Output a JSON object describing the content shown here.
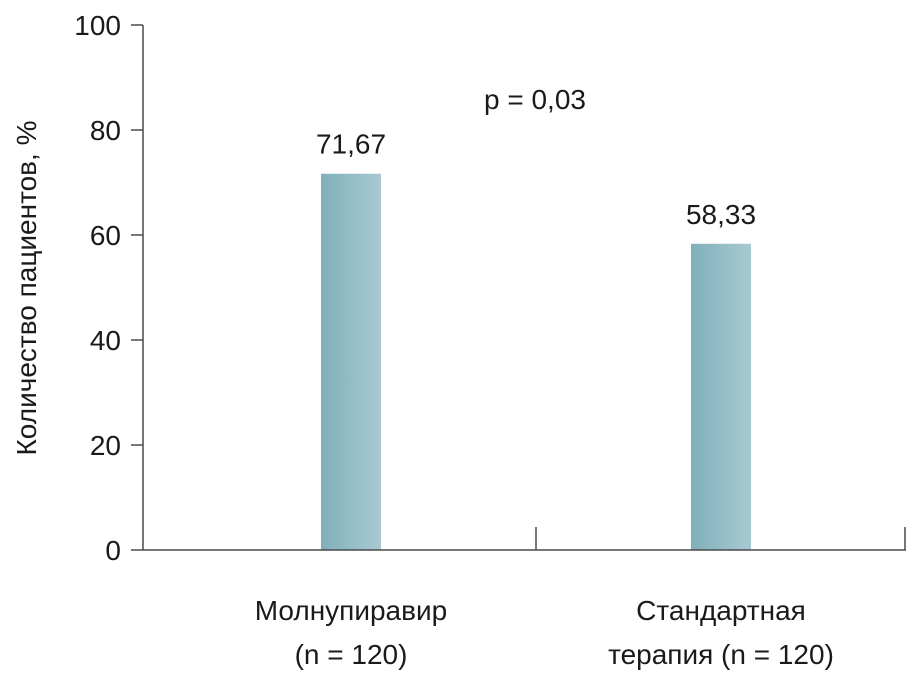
{
  "chart_data": {
    "type": "bar",
    "categories": [
      [
        "Молнупиравир",
        "(n = 120)"
      ],
      [
        "Стандартная",
        "терапия (n = 120)"
      ]
    ],
    "values": [
      71.67,
      58.33
    ],
    "value_labels": [
      "71,67",
      "58,33"
    ],
    "ylabel": "Количество пациентов, %",
    "ylim": [
      0,
      100
    ],
    "yticks": [
      0,
      20,
      40,
      60,
      80,
      100
    ],
    "annotation": "p = 0,03",
    "grid": false,
    "bar_color_start": "#7fb0bb",
    "bar_color_end": "#a9c9d1"
  }
}
